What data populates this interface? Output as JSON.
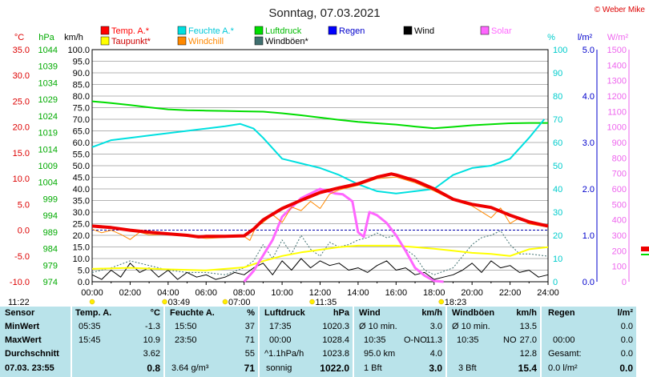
{
  "chart_data": {
    "type": "line",
    "title": "Sonntag, 07.03.2021",
    "copyright": "© Weber Mike",
    "x_axis": {
      "range_hours": [
        0,
        24
      ],
      "ticks": [
        "00:00",
        "02:00",
        "04:00",
        "06:00",
        "08:00",
        "10:00",
        "12:00",
        "14:00",
        "16:00",
        "18:00",
        "20:00",
        "22:00",
        "24:00"
      ]
    },
    "axes": {
      "temp_c": {
        "unit": "°C",
        "ticks": [
          "35.0",
          "30.0",
          "25.0",
          "20.0",
          "15.0",
          "10.0",
          "5.0",
          "0.0",
          "-5.0",
          "-10.0"
        ],
        "range": [
          -10,
          35
        ],
        "color": "#dd0000"
      },
      "pressure_hpa": {
        "unit": "hPa",
        "ticks": [
          "1044",
          "1039",
          "1034",
          "1029",
          "1024",
          "1019",
          "1014",
          "1009",
          "1004",
          "999",
          "994",
          "989",
          "984",
          "979",
          "974"
        ],
        "range": [
          974,
          1044
        ],
        "color": "#00aa00"
      },
      "wind_kmh": {
        "unit": "km/h",
        "ticks": [
          "100.0",
          "95.0",
          "90.0",
          "85.0",
          "80.0",
          "75.0",
          "70.0",
          "65.0",
          "60.0",
          "55.0",
          "50.0",
          "45.0",
          "40.0",
          "35.0",
          "30.0",
          "25.0",
          "20.0",
          "15.0",
          "10.0",
          "5.0",
          "0.0"
        ],
        "range": [
          0,
          100
        ],
        "color": "#000000"
      },
      "humidity_pct": {
        "unit": "%",
        "ticks": [
          "100",
          "90",
          "80",
          "70",
          "60",
          "50",
          "40",
          "30",
          "20",
          "10",
          "0"
        ],
        "range": [
          0,
          100
        ],
        "color": "#00cccc"
      },
      "rain_lm2": {
        "unit": "l/m²",
        "ticks": [
          "5.0",
          "4.0",
          "3.0",
          "2.0",
          "1.0",
          "0.0"
        ],
        "range": [
          0,
          5
        ],
        "color": "#0000cc"
      },
      "solar_wm2": {
        "unit": "W/m²",
        "ticks": [
          "1500",
          "1400",
          "1300",
          "1200",
          "1100",
          "1000",
          "900",
          "800",
          "700",
          "600",
          "500",
          "400",
          "300",
          "200",
          "100",
          "0"
        ],
        "range": [
          0,
          1500
        ],
        "color": "#ee66ee"
      }
    },
    "legend": [
      {
        "name": "Temp. A.*",
        "color": "#ff0000"
      },
      {
        "name": "Feuchte A.*",
        "color": "#00e0e0"
      },
      {
        "name": "Luftdruck",
        "color": "#00dd00"
      },
      {
        "name": "Regen",
        "color": "#0000ff"
      },
      {
        "name": "Wind",
        "color": "#000000"
      },
      {
        "name": "Solar",
        "color": "#ff66ff"
      },
      {
        "name": "Taupunkt*",
        "color": "#ffff00"
      },
      {
        "name": "Windchill",
        "color": "#ff8800"
      },
      {
        "name": "Windböen*",
        "color": "#407070"
      }
    ],
    "series": [
      {
        "name": "Temp. A.*",
        "axis": "temp_c",
        "color": "#ee0000",
        "width": 4,
        "x": [
          0,
          1,
          2,
          3,
          4,
          5,
          5.6,
          6,
          7,
          8,
          8.5,
          9,
          10,
          11,
          12,
          13,
          14,
          15,
          15.75,
          16,
          17,
          18,
          19,
          20,
          21,
          22,
          23,
          24
        ],
        "y": [
          0.8,
          0.5,
          0,
          -0.4,
          -0.7,
          -1.0,
          -1.3,
          -1.2,
          -1.2,
          -1.1,
          0.2,
          2.0,
          4.2,
          5.8,
          7.3,
          8.2,
          9.0,
          10.3,
          10.9,
          10.7,
          9.6,
          8.0,
          6.0,
          5.0,
          4.4,
          2.9,
          1.6,
          0.8
        ]
      },
      {
        "name": "Feuchte A.*",
        "axis": "humidity_pct",
        "color": "#00e0e0",
        "width": 2,
        "x": [
          0,
          1,
          2,
          3,
          4,
          5,
          6,
          7,
          7.8,
          8.5,
          9,
          10,
          11,
          12,
          13,
          14,
          15,
          16,
          17,
          18,
          19,
          20,
          21,
          22,
          23,
          23.8
        ],
        "y": [
          58,
          61,
          62,
          63,
          64,
          65,
          66,
          67,
          68,
          66,
          62,
          53,
          51,
          49,
          46,
          42,
          39,
          38,
          39,
          40,
          46,
          49,
          50,
          53,
          62,
          70
        ]
      },
      {
        "name": "Luftdruck",
        "axis": "pressure_hpa",
        "color": "#00dd00",
        "width": 2,
        "x": [
          0,
          1,
          2,
          3,
          4,
          5,
          6,
          7,
          8,
          9,
          10,
          11,
          12,
          13,
          14,
          15,
          16,
          17,
          18,
          19,
          20,
          21,
          22,
          23,
          24
        ],
        "y": [
          1028.4,
          1027.9,
          1027.3,
          1026.6,
          1026.0,
          1025.7,
          1025.6,
          1025.5,
          1025.4,
          1025.3,
          1024.8,
          1024.2,
          1023.5,
          1022.8,
          1022.2,
          1021.8,
          1021.4,
          1020.8,
          1020.3,
          1020.7,
          1021.2,
          1021.5,
          1021.8,
          1021.9,
          1021.9
        ]
      },
      {
        "name": "Taupunkt*",
        "axis": "temp_c",
        "color": "#ffff00",
        "width": 2,
        "x": [
          0,
          2,
          4,
          6,
          7,
          8,
          9,
          10,
          11,
          12,
          13,
          14,
          15,
          16,
          17,
          18,
          19,
          20,
          21,
          22,
          23,
          24
        ],
        "y": [
          -7.5,
          -7.3,
          -7.6,
          -7.8,
          -7.5,
          -7.2,
          -6.0,
          -5.0,
          -4.3,
          -3.8,
          -3.3,
          -3.0,
          -3.0,
          -3.0,
          -3.3,
          -3.6,
          -4.0,
          -4.4,
          -4.6,
          -5.0,
          -3.7,
          -3.3
        ]
      },
      {
        "name": "Windchill",
        "axis": "temp_c",
        "color": "#ff8800",
        "width": 1,
        "x": [
          0,
          0.5,
          1,
          1.5,
          2,
          2.5,
          3,
          4,
          5,
          6,
          7,
          8,
          8.3,
          8.6,
          9,
          9.5,
          10,
          10.5,
          11,
          11.5,
          12,
          12.5,
          13,
          14,
          15,
          16,
          17,
          18,
          19,
          20,
          21,
          21.5,
          22,
          22.5,
          23,
          24
        ],
        "y": [
          0.2,
          -0.5,
          0.0,
          -0.8,
          -1.8,
          -0.4,
          -0.9,
          -0.8,
          -1.2,
          -1.6,
          -1.4,
          -1.2,
          -2.0,
          0.5,
          1.5,
          3.0,
          1.5,
          4.5,
          3.8,
          5.6,
          4.2,
          7.0,
          7.8,
          8.7,
          10.0,
          10.3,
          9.2,
          7.6,
          5.8,
          4.7,
          2.4,
          4.3,
          1.3,
          2.4,
          1.2,
          0.6
        ]
      },
      {
        "name": "Solar",
        "axis": "solar_wm2",
        "color": "#ff66ff",
        "width": 3,
        "x": [
          8.0,
          8.5,
          9,
          9.5,
          10,
          11,
          12,
          12.8,
          13.2,
          13.7,
          14.0,
          14.3,
          14.6,
          15,
          15.5,
          16,
          16.5,
          17,
          17.5,
          18,
          18.5
        ],
        "y": [
          0,
          70,
          170,
          270,
          420,
          540,
          600,
          570,
          565,
          520,
          320,
          290,
          450,
          430,
          380,
          300,
          200,
          90,
          40,
          5,
          0
        ]
      },
      {
        "name": "Windböen*",
        "axis": "wind_kmh",
        "color": "#407070",
        "width": 1,
        "dashed": true,
        "x": [
          0,
          1,
          2,
          3,
          4,
          5,
          6,
          7,
          8,
          8.5,
          9,
          9.5,
          10,
          10.5,
          11,
          11.5,
          12,
          12.5,
          13,
          13.5,
          14,
          14.5,
          15,
          15.5,
          16,
          16.5,
          17,
          17.5,
          18,
          19,
          20,
          20.5,
          21,
          21.5,
          22,
          22.5,
          23,
          24
        ],
        "y": [
          4,
          6,
          9,
          7,
          5,
          4,
          4,
          3,
          6,
          9,
          16,
          10,
          18,
          12,
          20,
          14,
          11,
          17,
          15,
          16,
          18,
          19,
          21,
          19,
          20,
          14,
          11,
          5,
          3,
          6,
          16,
          19,
          20,
          22,
          16,
          12,
          12,
          11
        ]
      },
      {
        "name": "Wind",
        "axis": "wind_kmh",
        "color": "#000000",
        "width": 1,
        "x": [
          0,
          0.5,
          1,
          1.5,
          2,
          2.5,
          3,
          3.5,
          4,
          4.5,
          5,
          5.5,
          6,
          6.5,
          7,
          7.5,
          8,
          8.5,
          9,
          9.5,
          10,
          10.5,
          11,
          11.5,
          12,
          12.5,
          13,
          13.5,
          14,
          14.5,
          15,
          15.5,
          16,
          16.5,
          17,
          17.5,
          18,
          18.5,
          19,
          19.5,
          20,
          20.5,
          21,
          21.5,
          22,
          22.5,
          23,
          23.5,
          24
        ],
        "y": [
          3,
          1,
          5,
          2,
          8,
          4,
          6,
          2,
          5,
          1,
          4,
          2,
          3,
          1,
          2,
          4,
          3,
          6,
          8,
          3,
          9,
          5,
          10,
          6,
          9,
          7,
          8,
          5,
          6,
          4,
          7,
          9,
          5,
          6,
          3,
          4,
          1,
          2,
          3,
          5,
          8,
          4,
          9,
          6,
          7,
          4,
          5,
          2,
          3
        ]
      }
    ],
    "reference_lines": [
      {
        "axis": "temp_c",
        "value": 0,
        "color": "#0000aa",
        "dashed": true
      }
    ],
    "markers_below": [
      {
        "hour": 0,
        "text": "11:22"
      },
      {
        "hour": 3.82,
        "text": "03:49"
      },
      {
        "hour": 7.0,
        "text": "07:00"
      },
      {
        "hour": 11.58,
        "text": "11:35"
      },
      {
        "hour": 18.38,
        "text": "18:23"
      }
    ]
  },
  "stats": {
    "col_labels": {
      "sensor": "Sensor",
      "min": "MinWert",
      "max": "MaxWert",
      "avg": "Durchschnitt",
      "date": "07.03. 23:55"
    },
    "temp": {
      "title": "Temp. A.",
      "unit": "°C",
      "min_time": "05:35",
      "min": "-1.3",
      "max_time": "15:45",
      "max": "10.9",
      "avg": "3.62",
      "now": "0.8"
    },
    "hum": {
      "title": "Feuchte A.",
      "unit": "%",
      "min_time": "15:50",
      "min": "37",
      "max_time": "23:50",
      "max": "71",
      "avg": "55",
      "abs": "3.64 g/m³",
      "now": "71"
    },
    "press": {
      "title": "Luftdruck",
      "unit": "hPa",
      "min_time": "17:35",
      "min": "1020.3",
      "max_time": "00:00",
      "max": "1028.4",
      "trend": "^1.1hPa/h",
      "avg": "1023.8",
      "state": "sonnig",
      "now": "1022.0"
    },
    "wind": {
      "title": "Wind",
      "unit": "km/h",
      "min_label": "Ø 10 min.",
      "min": "3.0",
      "max_time": "10:35",
      "max_dir": "O-NO",
      "max": "11.3",
      "dist": "95.0 km",
      "avg": "4.0",
      "bft": "1 Bft",
      "now": "3.0"
    },
    "gust": {
      "title": "Windböen",
      "unit": "km/h",
      "min_label": "Ø 10 min.",
      "min": "13.5",
      "max_time": "10:35",
      "max_dir": "NO",
      "max": "27.0",
      "avg": "12.8",
      "bft": "3 Bft",
      "now": "15.4"
    },
    "rain": {
      "title": "Regen",
      "unit": "l/m²",
      "min": "0.0",
      "max_time": "00:00",
      "max": "0.0",
      "total_label": "Gesamt:",
      "total": "0.0",
      "now_text": "0.0 l/m²",
      "now": "0.0"
    }
  }
}
